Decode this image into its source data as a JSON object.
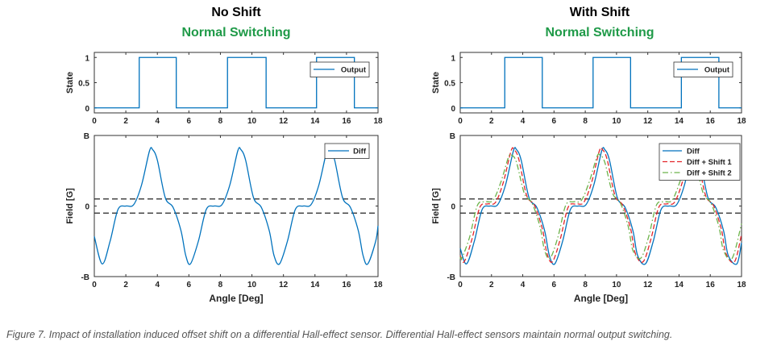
{
  "panels": [
    {
      "title": "No Shift",
      "subtitle": "Normal Switching"
    },
    {
      "title": "With Shift",
      "subtitle": "Normal Switching"
    }
  ],
  "caption": "Figure 7. Impact of installation induced offset shift on a differential Hall-effect sensor. Differential Hall-effect sensors maintain normal output switching.",
  "colors": {
    "diff": "#0072BD",
    "shift1": "#e3262b",
    "shift2": "#6cb34a",
    "threshold": "#222222",
    "subtitle": "#1f9a48"
  },
  "chart_data": [
    {
      "type": "line",
      "panel": 0,
      "role": "state",
      "xlabel": "",
      "ylabel": "State",
      "xlim": [
        0,
        18
      ],
      "ylim": [
        -0.1,
        1.1
      ],
      "xticks": [
        0,
        2,
        4,
        6,
        8,
        10,
        12,
        14,
        16,
        18
      ],
      "yticks": [
        0,
        0.5,
        1
      ],
      "ytick_labels": [
        "0",
        "0.5",
        "1"
      ],
      "legend": "top-right",
      "series": [
        {
          "name": "Output",
          "color": "#0072BD",
          "style": "solid",
          "step": true,
          "points": [
            [
              0,
              0
            ],
            [
              2.85,
              0
            ],
            [
              2.85,
              1
            ],
            [
              5.2,
              1
            ],
            [
              5.2,
              0
            ],
            [
              8.45,
              0
            ],
            [
              8.45,
              1
            ],
            [
              10.9,
              1
            ],
            [
              10.9,
              0
            ],
            [
              14.1,
              0
            ],
            [
              14.1,
              1
            ],
            [
              16.5,
              1
            ],
            [
              16.5,
              0
            ],
            [
              18,
              0
            ]
          ]
        }
      ]
    },
    {
      "type": "line",
      "panel": 0,
      "role": "field",
      "xlabel": "Angle [Deg]",
      "ylabel": "Field [G]",
      "xlim": [
        0,
        18
      ],
      "ylim": [
        -1,
        1
      ],
      "xticks": [
        0,
        2,
        4,
        6,
        8,
        10,
        12,
        14,
        16,
        18
      ],
      "yticks": [
        -1,
        0,
        1
      ],
      "ytick_labels": [
        "-B",
        "0",
        "B"
      ],
      "thresholds": [
        0.1,
        -0.1
      ],
      "legend": "top-right",
      "series": [
        {
          "name": "Diff",
          "color": "#0072BD",
          "style": "solid",
          "points": [
            [
              0,
              -0.43
            ],
            [
              0.5,
              -0.82
            ],
            [
              1.0,
              -0.5
            ],
            [
              1.5,
              -0.05
            ],
            [
              2.0,
              0
            ],
            [
              2.5,
              0.02
            ],
            [
              3.0,
              0.3
            ],
            [
              3.5,
              0.78
            ],
            [
              3.7,
              0.8
            ],
            [
              4.0,
              0.65
            ],
            [
              4.5,
              0.12
            ],
            [
              5.0,
              -0.02
            ],
            [
              5.5,
              -0.35
            ],
            [
              5.8,
              -0.7
            ],
            [
              6.1,
              -0.82
            ],
            [
              6.6,
              -0.5
            ],
            [
              7.1,
              -0.05
            ],
            [
              7.6,
              0
            ],
            [
              8.1,
              0.02
            ],
            [
              8.6,
              0.3
            ],
            [
              9.1,
              0.78
            ],
            [
              9.3,
              0.8
            ],
            [
              9.6,
              0.65
            ],
            [
              10.1,
              0.12
            ],
            [
              10.6,
              -0.02
            ],
            [
              11.1,
              -0.35
            ],
            [
              11.4,
              -0.7
            ],
            [
              11.75,
              -0.82
            ],
            [
              12.25,
              -0.5
            ],
            [
              12.75,
              -0.05
            ],
            [
              13.25,
              0
            ],
            [
              13.75,
              0.02
            ],
            [
              14.25,
              0.3
            ],
            [
              14.75,
              0.78
            ],
            [
              14.95,
              0.8
            ],
            [
              15.25,
              0.65
            ],
            [
              15.75,
              0.12
            ],
            [
              16.25,
              -0.02
            ],
            [
              16.75,
              -0.35
            ],
            [
              17.05,
              -0.7
            ],
            [
              17.35,
              -0.82
            ],
            [
              17.85,
              -0.5
            ],
            [
              18,
              -0.28
            ]
          ]
        }
      ]
    },
    {
      "type": "line",
      "panel": 1,
      "role": "state",
      "xlabel": "",
      "ylabel": "State",
      "xlim": [
        0,
        18
      ],
      "ylim": [
        -0.1,
        1.1
      ],
      "xticks": [
        0,
        2,
        4,
        6,
        8,
        10,
        12,
        14,
        16,
        18
      ],
      "yticks": [
        0,
        0.5,
        1
      ],
      "ytick_labels": [
        "0",
        "0.5",
        "1"
      ],
      "legend": "top-right",
      "series": [
        {
          "name": "Output",
          "color": "#0072BD",
          "style": "solid",
          "step": true,
          "points": [
            [
              0,
              0
            ],
            [
              2.85,
              0
            ],
            [
              2.85,
              1
            ],
            [
              5.25,
              1
            ],
            [
              5.25,
              0
            ],
            [
              8.5,
              0
            ],
            [
              8.5,
              1
            ],
            [
              10.9,
              1
            ],
            [
              10.9,
              0
            ],
            [
              14.15,
              0
            ],
            [
              14.15,
              1
            ],
            [
              16.55,
              1
            ],
            [
              16.55,
              0
            ],
            [
              18,
              0
            ]
          ]
        }
      ]
    },
    {
      "type": "line",
      "panel": 1,
      "role": "field",
      "xlabel": "Angle [Deg]",
      "ylabel": "Field [G]",
      "xlim": [
        0,
        18
      ],
      "ylim": [
        -1,
        1
      ],
      "xticks": [
        0,
        2,
        4,
        6,
        8,
        10,
        12,
        14,
        16,
        18
      ],
      "yticks": [
        -1,
        0,
        1
      ],
      "ytick_labels": [
        "-B",
        "0",
        "B"
      ],
      "thresholds": [
        0.1,
        -0.1
      ],
      "legend": "top-right",
      "series": [
        {
          "name": "Diff",
          "color": "#0072BD",
          "style": "solid",
          "points": [
            [
              0,
              -0.6
            ],
            [
              0.4,
              -0.82
            ],
            [
              0.9,
              -0.5
            ],
            [
              1.4,
              -0.05
            ],
            [
              1.9,
              0
            ],
            [
              2.4,
              0.02
            ],
            [
              2.9,
              0.3
            ],
            [
              3.4,
              0.78
            ],
            [
              3.6,
              0.8
            ],
            [
              3.9,
              0.65
            ],
            [
              4.4,
              0.12
            ],
            [
              4.9,
              -0.02
            ],
            [
              5.4,
              -0.35
            ],
            [
              5.7,
              -0.7
            ],
            [
              6.05,
              -0.82
            ],
            [
              6.55,
              -0.5
            ],
            [
              7.05,
              -0.05
            ],
            [
              7.55,
              0
            ],
            [
              8.05,
              0.02
            ],
            [
              8.55,
              0.3
            ],
            [
              9.05,
              0.78
            ],
            [
              9.25,
              0.8
            ],
            [
              9.55,
              0.65
            ],
            [
              10.05,
              0.12
            ],
            [
              10.55,
              -0.02
            ],
            [
              11.05,
              -0.35
            ],
            [
              11.35,
              -0.7
            ],
            [
              11.85,
              -0.82
            ],
            [
              12.35,
              -0.5
            ],
            [
              12.85,
              -0.05
            ],
            [
              13.35,
              0
            ],
            [
              13.85,
              0.02
            ],
            [
              14.35,
              0.3
            ],
            [
              14.85,
              0.78
            ],
            [
              15.05,
              0.8
            ],
            [
              15.35,
              0.65
            ],
            [
              15.85,
              0.12
            ],
            [
              16.35,
              -0.02
            ],
            [
              16.85,
              -0.35
            ],
            [
              17.15,
              -0.7
            ],
            [
              17.7,
              -0.82
            ],
            [
              18,
              -0.52
            ]
          ]
        },
        {
          "name": "Diff + Shift 1",
          "color": "#e3262b",
          "style": "dashed",
          "points": [
            [
              0,
              -0.7
            ],
            [
              0.25,
              -0.79
            ],
            [
              0.75,
              -0.47
            ],
            [
              1.25,
              -0.02
            ],
            [
              1.75,
              0.03
            ],
            [
              2.25,
              0.05
            ],
            [
              2.75,
              0.33
            ],
            [
              3.25,
              0.78
            ],
            [
              3.45,
              0.8
            ],
            [
              3.75,
              0.66
            ],
            [
              4.25,
              0.15
            ],
            [
              4.75,
              0.01
            ],
            [
              5.25,
              -0.32
            ],
            [
              5.55,
              -0.67
            ],
            [
              5.9,
              -0.79
            ],
            [
              6.4,
              -0.47
            ],
            [
              6.9,
              -0.02
            ],
            [
              7.4,
              0.03
            ],
            [
              7.9,
              0.05
            ],
            [
              8.4,
              0.33
            ],
            [
              8.9,
              0.78
            ],
            [
              9.1,
              0.8
            ],
            [
              9.4,
              0.66
            ],
            [
              9.9,
              0.15
            ],
            [
              10.4,
              0.01
            ],
            [
              10.9,
              -0.32
            ],
            [
              11.2,
              -0.67
            ],
            [
              11.7,
              -0.79
            ],
            [
              12.2,
              -0.47
            ],
            [
              12.7,
              -0.02
            ],
            [
              13.2,
              0.03
            ],
            [
              13.7,
              0.05
            ],
            [
              14.2,
              0.33
            ],
            [
              14.7,
              0.78
            ],
            [
              14.9,
              0.8
            ],
            [
              15.2,
              0.66
            ],
            [
              15.7,
              0.15
            ],
            [
              16.2,
              0.01
            ],
            [
              16.7,
              -0.32
            ],
            [
              17.0,
              -0.67
            ],
            [
              17.55,
              -0.79
            ],
            [
              18,
              -0.4
            ]
          ]
        },
        {
          "name": "Diff + Shift 2",
          "color": "#6cb34a",
          "style": "dashdot",
          "points": [
            [
              0,
              -0.72
            ],
            [
              0.1,
              -0.74
            ],
            [
              0.6,
              -0.44
            ],
            [
              1.1,
              0.01
            ],
            [
              1.6,
              0.06
            ],
            [
              2.1,
              0.08
            ],
            [
              2.6,
              0.34
            ],
            [
              3.1,
              0.7
            ],
            [
              3.3,
              0.72
            ],
            [
              3.6,
              0.62
            ],
            [
              4.1,
              0.18
            ],
            [
              4.6,
              0.04
            ],
            [
              5.1,
              -0.29
            ],
            [
              5.4,
              -0.63
            ],
            [
              5.75,
              -0.74
            ],
            [
              6.25,
              -0.44
            ],
            [
              6.75,
              0.01
            ],
            [
              7.25,
              0.06
            ],
            [
              7.75,
              0.08
            ],
            [
              8.25,
              0.34
            ],
            [
              8.75,
              0.7
            ],
            [
              8.95,
              0.72
            ],
            [
              9.25,
              0.62
            ],
            [
              9.75,
              0.18
            ],
            [
              10.25,
              0.04
            ],
            [
              10.75,
              -0.29
            ],
            [
              11.05,
              -0.63
            ],
            [
              11.55,
              -0.74
            ],
            [
              12.05,
              -0.44
            ],
            [
              12.55,
              0.01
            ],
            [
              13.05,
              0.06
            ],
            [
              13.55,
              0.08
            ],
            [
              14.05,
              0.34
            ],
            [
              14.55,
              0.7
            ],
            [
              14.75,
              0.72
            ],
            [
              15.05,
              0.62
            ],
            [
              15.55,
              0.18
            ],
            [
              16.05,
              0.04
            ],
            [
              16.55,
              -0.29
            ],
            [
              16.85,
              -0.63
            ],
            [
              17.4,
              -0.74
            ],
            [
              18,
              -0.25
            ]
          ]
        }
      ]
    }
  ]
}
